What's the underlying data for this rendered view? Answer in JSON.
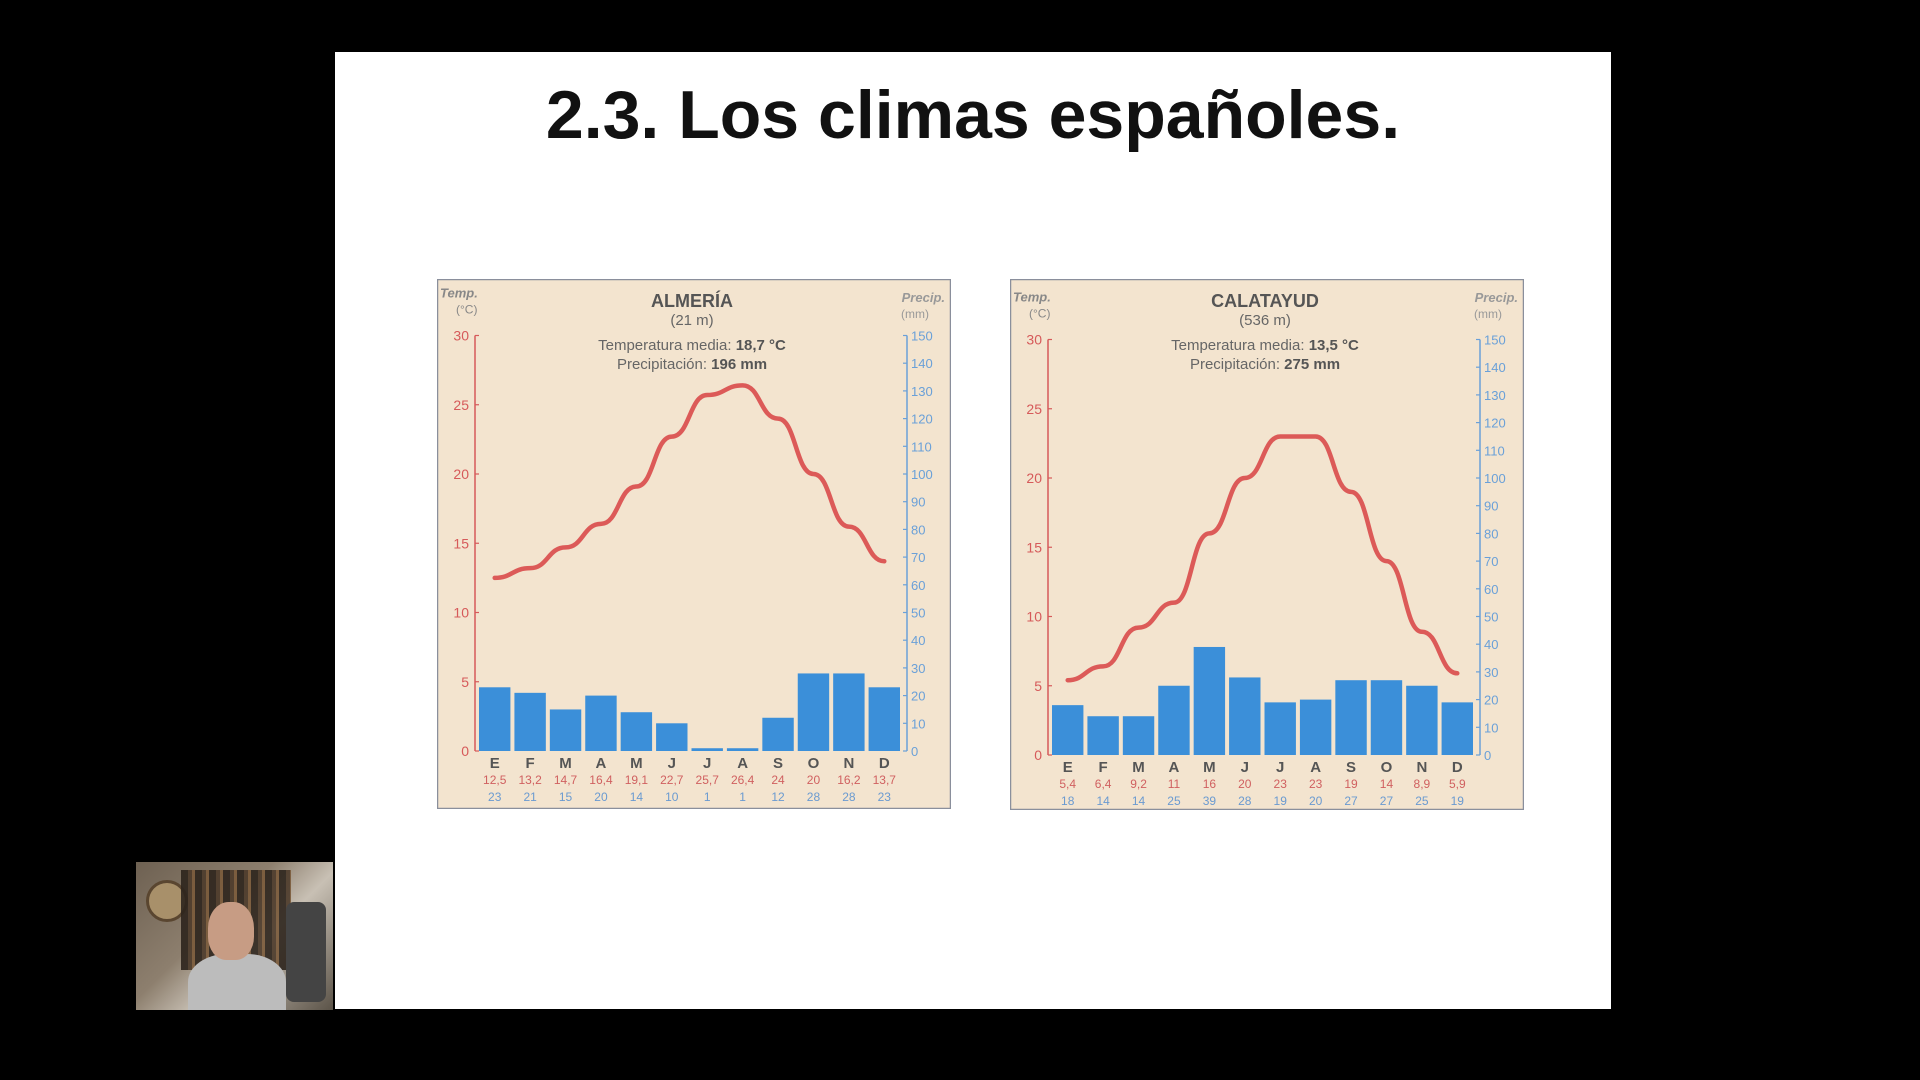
{
  "slide": {
    "title": "2.3. Los climas españoles."
  },
  "colors": {
    "background": "#000000",
    "slide": "#ffffff",
    "panel": "#f3e4cf",
    "bars": "#3b8fd9",
    "temp_line": "#d94a4a",
    "temp_axis": "#d65a5a",
    "precip_axis": "#6aa0d8"
  },
  "chart_data": [
    {
      "type": "bar",
      "title": "ALMERÍA",
      "subtitle": "(21 m)",
      "stats": {
        "temp_label": "Temperatura media:",
        "temp_value": "18,7 °C",
        "precip_label": "Precipitación:",
        "precip_value": "196 mm"
      },
      "y_left_label": [
        "Temp.",
        "(°C)"
      ],
      "y_right_label": [
        "Precip.",
        "(mm)"
      ],
      "y_left_ticks": [
        0,
        5,
        10,
        15,
        20,
        25,
        30
      ],
      "y_right_ticks": [
        0,
        10,
        20,
        30,
        40,
        50,
        60,
        70,
        80,
        90,
        100,
        110,
        120,
        130,
        140,
        150
      ],
      "ylim_temp": [
        0,
        30
      ],
      "ylim_precip": [
        0,
        150
      ],
      "categories": [
        "E",
        "F",
        "M",
        "A",
        "M",
        "J",
        "J",
        "A",
        "S",
        "O",
        "N",
        "D"
      ],
      "temp_labels": [
        "12,5",
        "13,2",
        "14,7",
        "16,4",
        "19,1",
        "22,7",
        "25,7",
        "26,4",
        "24",
        "20",
        "16,2",
        "13,7"
      ],
      "precip_labels": [
        "23",
        "21",
        "15",
        "20",
        "14",
        "10",
        "1",
        "1",
        "12",
        "28",
        "28",
        "23"
      ],
      "series": [
        {
          "type": "bar",
          "axis": "precip",
          "values": [
            23,
            21,
            15,
            20,
            14,
            10,
            1,
            1,
            12,
            28,
            28,
            23
          ]
        },
        {
          "type": "line",
          "axis": "temp",
          "values": [
            12.5,
            13.2,
            14.7,
            16.4,
            19.1,
            22.7,
            25.7,
            26.4,
            24,
            20,
            16.2,
            13.7
          ]
        }
      ]
    },
    {
      "type": "bar",
      "title": "CALATAYUD",
      "subtitle": "(536 m)",
      "stats": {
        "temp_label": "Temperatura media:",
        "temp_value": "13,5 °C",
        "precip_label": "Precipitación:",
        "precip_value": "275 mm"
      },
      "y_left_label": [
        "Temp.",
        "(°C)"
      ],
      "y_right_label": [
        "Precip.",
        "(mm)"
      ],
      "y_left_ticks": [
        0,
        5,
        10,
        15,
        20,
        25,
        30
      ],
      "y_right_ticks": [
        0,
        10,
        20,
        30,
        40,
        50,
        60,
        70,
        80,
        90,
        100,
        110,
        120,
        130,
        140,
        150
      ],
      "ylim_temp": [
        0,
        30
      ],
      "ylim_precip": [
        0,
        150
      ],
      "categories": [
        "E",
        "F",
        "M",
        "A",
        "M",
        "J",
        "J",
        "A",
        "S",
        "O",
        "N",
        "D"
      ],
      "temp_labels": [
        "5,4",
        "6,4",
        "9,2",
        "11",
        "16",
        "20",
        "23",
        "23",
        "19",
        "14",
        "8,9",
        "5,9"
      ],
      "precip_labels": [
        "18",
        "14",
        "14",
        "25",
        "39",
        "28",
        "19",
        "20",
        "27",
        "27",
        "25",
        "19"
      ],
      "series": [
        {
          "type": "bar",
          "axis": "precip",
          "values": [
            18,
            14,
            14,
            25,
            39,
            28,
            19,
            20,
            27,
            27,
            25,
            19
          ]
        },
        {
          "type": "line",
          "axis": "temp",
          "values": [
            5.4,
            6.4,
            9.2,
            11,
            16,
            20,
            23,
            23,
            19,
            14,
            8.9,
            5.9
          ]
        }
      ]
    }
  ]
}
